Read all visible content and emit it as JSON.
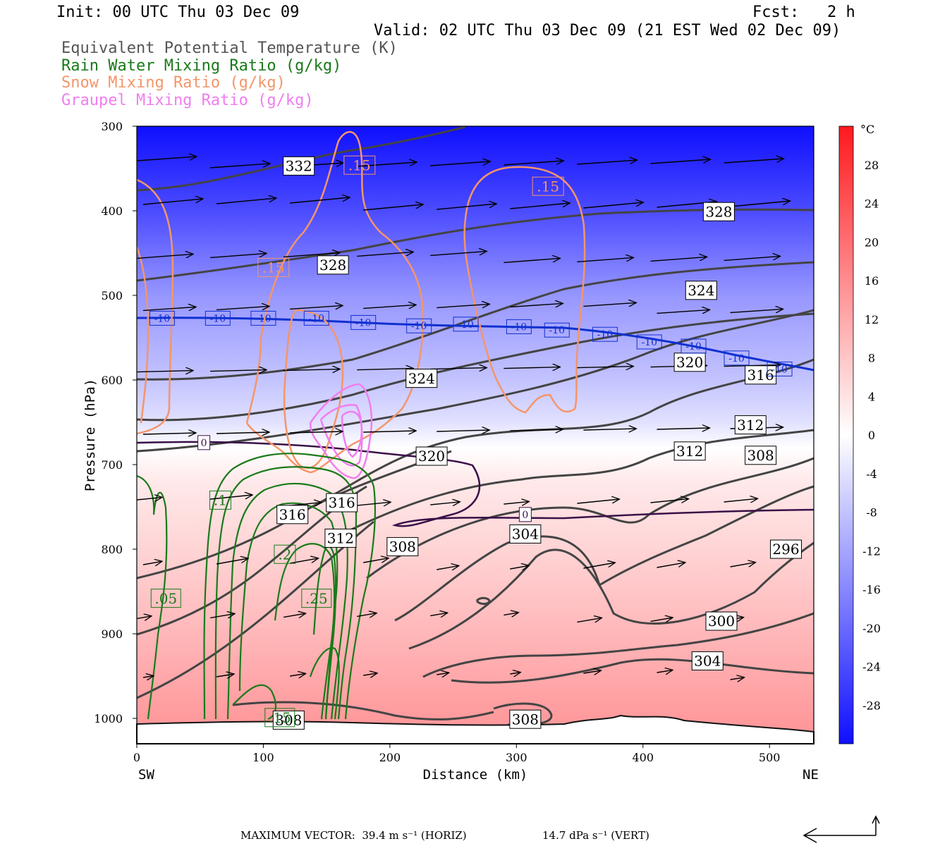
{
  "header": {
    "init": "Init: 00 UTC Thu 03 Dec 09",
    "fcst": "Fcst:   2 h",
    "valid": "Valid: 02 UTC Thu 03 Dec 09 (21 EST Wed 02 Dec 09)"
  },
  "legend": [
    {
      "label": "Equivalent Potential Temperature (K)",
      "color": "#555555"
    },
    {
      "label": "Rain Water Mixing Ratio (g/kg)",
      "color": "#1a7a1a"
    },
    {
      "label": "Snow Mixing Ratio (g/kg)",
      "color": "#f4956a"
    },
    {
      "label": "Graupel Mixing Ratio (g/kg)",
      "color": "#f07ef0"
    }
  ],
  "footer": {
    "max_vector": "MAXIMUM VECTOR:  39.4 m s⁻¹ (HORIZ)",
    "vert": "14.7 dPa s⁻¹ (VERT)"
  },
  "chart_data": {
    "type": "heatmap",
    "xlabel": "Distance (km)",
    "ylabel": "Pressure (hPa)",
    "xlim": [
      0,
      535
    ],
    "ylim": [
      1030,
      300
    ],
    "x_ticks": [
      "0",
      "100",
      "200",
      "300",
      "400",
      "500"
    ],
    "y_ticks": [
      "300",
      "400",
      "500",
      "600",
      "700",
      "800",
      "900",
      "1000"
    ],
    "x_end_labels": {
      "left": "SW",
      "right": "NE"
    },
    "colorbar": {
      "unit": "°C",
      "ticks": [
        "28",
        "24",
        "20",
        "16",
        "12",
        "8",
        "4",
        "0",
        "-4",
        "-8",
        "-12",
        "-16",
        "-20",
        "-24",
        "-28"
      ],
      "range": [
        -32,
        32
      ]
    },
    "temperature_fill": [
      {
        "p": 300,
        "t": -32
      },
      {
        "p": 350,
        "t": -28
      },
      {
        "p": 400,
        "t": -24
      },
      {
        "p": 450,
        "t": -19
      },
      {
        "p": 500,
        "t": -14
      },
      {
        "p": 550,
        "t": -11
      },
      {
        "p": 600,
        "t": -8
      },
      {
        "p": 650,
        "t": -4
      },
      {
        "p": 680,
        "t": 0
      },
      {
        "p": 720,
        "t": 3
      },
      {
        "p": 800,
        "t": 6
      },
      {
        "p": 900,
        "t": 10
      },
      {
        "p": 1000,
        "t": 14
      },
      {
        "p": 1030,
        "t": 15
      }
    ],
    "theta_e_labels": [
      {
        "text": "332",
        "x": 128,
        "p": 347
      },
      {
        "text": "328",
        "x": 155,
        "p": 464
      },
      {
        "text": "328",
        "x": 460,
        "p": 401
      },
      {
        "text": "324",
        "x": 446,
        "p": 494
      },
      {
        "text": "324",
        "x": 225,
        "p": 598
      },
      {
        "text": "320",
        "x": 437,
        "p": 579
      },
      {
        "text": "316",
        "x": 493,
        "p": 594
      },
      {
        "text": "320",
        "x": 233,
        "p": 690
      },
      {
        "text": "312",
        "x": 485,
        "p": 653
      },
      {
        "text": "312",
        "x": 437,
        "p": 684
      },
      {
        "text": "308",
        "x": 493,
        "p": 689
      },
      {
        "text": "316",
        "x": 123,
        "p": 759
      },
      {
        "text": "316",
        "x": 162,
        "p": 745
      },
      {
        "text": "312",
        "x": 161,
        "p": 787
      },
      {
        "text": "308",
        "x": 210,
        "p": 797
      },
      {
        "text": "304",
        "x": 307,
        "p": 782
      },
      {
        "text": "296",
        "x": 513,
        "p": 800
      },
      {
        "text": "300",
        "x": 462,
        "p": 885
      },
      {
        "text": "304",
        "x": 451,
        "p": 932
      },
      {
        "text": "308",
        "x": 120,
        "p": 1002
      },
      {
        "text": "308",
        "x": 307,
        "p": 1001
      }
    ],
    "isotherm_labels": [
      {
        "text": "-10",
        "x": 20,
        "p": 527
      },
      {
        "text": "-10",
        "x": 64,
        "p": 527
      },
      {
        "text": "-10",
        "x": 100,
        "p": 527
      },
      {
        "text": "-10",
        "x": 142,
        "p": 527
      },
      {
        "text": "-10",
        "x": 179,
        "p": 532
      },
      {
        "text": "-10",
        "x": 223,
        "p": 536
      },
      {
        "text": "-10",
        "x": 260,
        "p": 534
      },
      {
        "text": "-10",
        "x": 302,
        "p": 537
      },
      {
        "text": "-10",
        "x": 332,
        "p": 541
      },
      {
        "text": "-10",
        "x": 370,
        "p": 546
      },
      {
        "text": "-10",
        "x": 405,
        "p": 555
      },
      {
        "text": "-10",
        "x": 440,
        "p": 560
      },
      {
        "text": "-10",
        "x": 474,
        "p": 574
      },
      {
        "text": "-10",
        "x": 508,
        "p": 587
      },
      {
        "text": "0",
        "x": 53,
        "p": 674
      },
      {
        "text": "0",
        "x": 307,
        "p": 759
      }
    ],
    "rain_labels": [
      {
        "text": ".05",
        "x": 23,
        "p": 858
      },
      {
        "text": ".1",
        "x": 66,
        "p": 742
      },
      {
        "text": ".2",
        "x": 117,
        "p": 806
      },
      {
        "text": ".25",
        "x": 142,
        "p": 858
      },
      {
        "text": ".15",
        "x": 113,
        "p": 999
      }
    ],
    "snow_labels": [
      {
        "text": ".15",
        "x": 176,
        "p": 346
      },
      {
        "text": ".15",
        "x": 325,
        "p": 371
      },
      {
        "text": ".15",
        "x": 108,
        "p": 467
      }
    ]
  }
}
